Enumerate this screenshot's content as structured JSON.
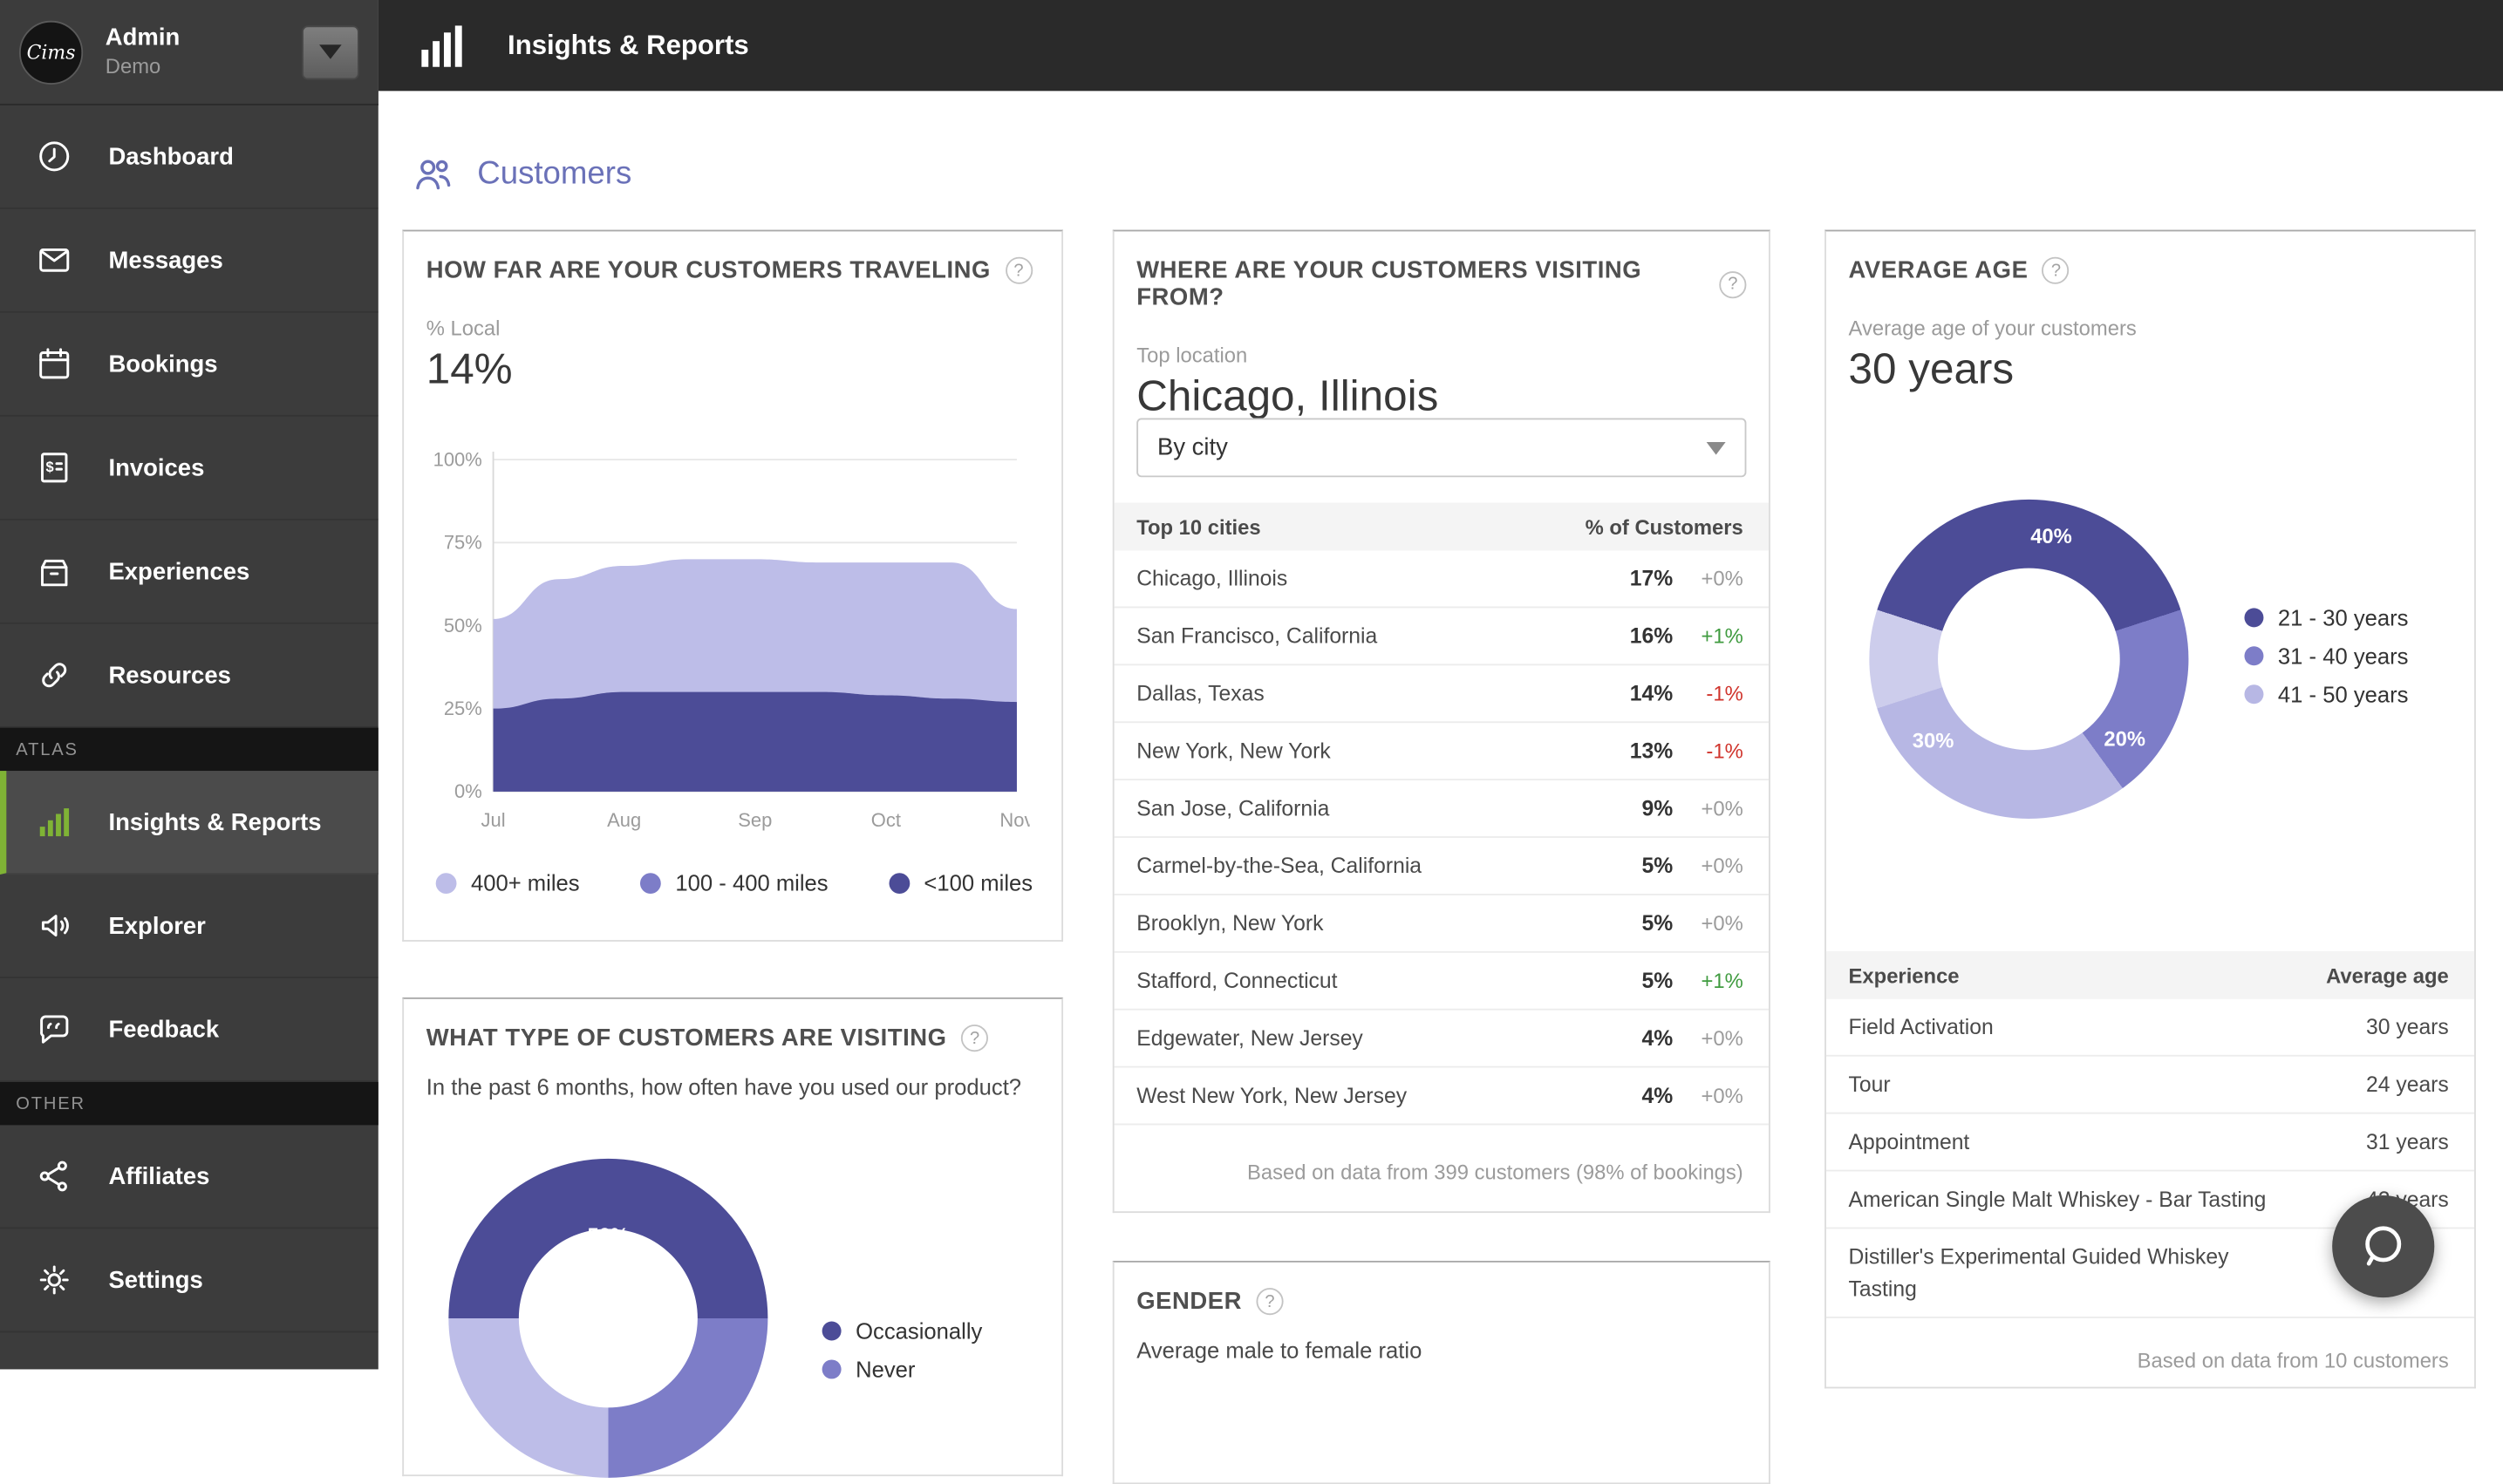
{
  "ui": {
    "help": "?"
  },
  "profile": {
    "logo": "Cims",
    "name": "Admin",
    "subtitle": "Demo"
  },
  "topbar": {
    "title": "Insights & Reports"
  },
  "sidebar": {
    "main_items": [
      {
        "label": "Dashboard"
      },
      {
        "label": "Messages"
      },
      {
        "label": "Bookings"
      },
      {
        "label": "Invoices"
      },
      {
        "label": "Experiences"
      },
      {
        "label": "Resources"
      }
    ],
    "atlas_header": "ATLAS",
    "atlas_items": [
      {
        "label": "Insights & Reports",
        "active": true
      },
      {
        "label": "Explorer"
      },
      {
        "label": "Feedback"
      }
    ],
    "other_header": "OTHER",
    "other_items": [
      {
        "label": "Affiliates"
      },
      {
        "label": "Settings"
      }
    ]
  },
  "page": {
    "section_title": "Customers"
  },
  "traveling_card": {
    "title": "HOW FAR ARE YOUR CUSTOMERS TRAVELING",
    "metric_label": "% Local",
    "metric_value": "14%",
    "legend": [
      {
        "label": "400+ miles",
        "color": "#bdbde8"
      },
      {
        "label": "100 - 400 miles",
        "color": "#7d7dc8"
      },
      {
        "label": "<100 miles",
        "color": "#4c4c97"
      }
    ],
    "chart_data": {
      "type": "area",
      "stacked": true,
      "categories": [
        "Jul",
        "Aug",
        "Sep",
        "Oct",
        "Nov"
      ],
      "yticks": [
        0,
        25,
        50,
        75,
        100
      ],
      "ylim": [
        0,
        100
      ],
      "series": [
        {
          "name": "<100 miles",
          "color": "#4c4c97",
          "values": [
            25,
            28,
            30,
            30,
            30,
            30,
            29,
            28,
            27
          ]
        },
        {
          "name": "400+ miles",
          "color": "#bdbde8",
          "values": [
            27,
            36,
            38,
            40,
            40,
            39,
            40,
            41,
            28
          ]
        }
      ]
    }
  },
  "type_card": {
    "title": "WHAT TYPE OF CUSTOMERS ARE VISITING",
    "subtitle": "In the past 6 months, how often have you used our product?",
    "chart_data": {
      "type": "pie",
      "donut": true,
      "segments": [
        {
          "label": "Occasionally",
          "pct": 50,
          "color": "#4c4c97",
          "display": "50%"
        },
        {
          "label": "Never",
          "pct": 25,
          "color": "#7d7dc8",
          "display": ""
        },
        {
          "label": "",
          "pct": 25,
          "color": "#bdbde8",
          "display": ""
        }
      ]
    },
    "legend": [
      {
        "label": "Occasionally"
      },
      {
        "label": "Never"
      }
    ]
  },
  "visiting_card": {
    "title": "WHERE ARE YOUR CUSTOMERS VISITING FROM?",
    "top_location_label": "Top location",
    "top_location": "Chicago, Illinois",
    "filter_value": "By city",
    "table": {
      "col1": "Top 10 cities",
      "col2": "% of Customers",
      "rows": [
        {
          "city": "Chicago, Illinois",
          "pct": "17%",
          "delta": "+0%",
          "delta_type": "zero"
        },
        {
          "city": "San Francisco, California",
          "pct": "16%",
          "delta": "+1%",
          "delta_type": "up"
        },
        {
          "city": "Dallas, Texas",
          "pct": "14%",
          "delta": "-1%",
          "delta_type": "down"
        },
        {
          "city": "New York, New York",
          "pct": "13%",
          "delta": "-1%",
          "delta_type": "down"
        },
        {
          "city": "San Jose, California",
          "pct": "9%",
          "delta": "+0%",
          "delta_type": "zero"
        },
        {
          "city": "Carmel-by-the-Sea, California",
          "pct": "5%",
          "delta": "+0%",
          "delta_type": "zero"
        },
        {
          "city": "Brooklyn, New York",
          "pct": "5%",
          "delta": "+0%",
          "delta_type": "zero"
        },
        {
          "city": "Stafford, Connecticut",
          "pct": "5%",
          "delta": "+1%",
          "delta_type": "up"
        },
        {
          "city": "Edgewater, New Jersey",
          "pct": "4%",
          "delta": "+0%",
          "delta_type": "zero"
        },
        {
          "city": "West New York, New Jersey",
          "pct": "4%",
          "delta": "+0%",
          "delta_type": "zero"
        }
      ]
    },
    "footnote": "Based on data from 399 customers (98% of bookings)"
  },
  "gender_card": {
    "title": "GENDER",
    "subtitle": "Average male to female ratio"
  },
  "age_card": {
    "title": "AVERAGE AGE",
    "subtitle": "Average age of your customers",
    "metric_value": "30 years",
    "chart_data": {
      "type": "pie",
      "donut": true,
      "segments": [
        {
          "label": "21 - 30 years",
          "pct": 40,
          "color": "#4c4c97",
          "display": "40%"
        },
        {
          "label": "31 - 40 years",
          "pct": 20,
          "color": "#7d7dc8",
          "display": "20%"
        },
        {
          "label": "41 - 50 years",
          "pct": 30,
          "color": "#b7b7e4",
          "display": "30%"
        },
        {
          "label": "",
          "pct": 10,
          "color": "#cdcdec",
          "display": ""
        }
      ]
    },
    "legend": [
      {
        "label": "21 - 30 years"
      },
      {
        "label": "31 - 40 years"
      },
      {
        "label": "41 - 50 years"
      }
    ],
    "table": {
      "col1": "Experience",
      "col2": "Average age",
      "rows": [
        {
          "experience": "Field Activation",
          "age": "30 years"
        },
        {
          "experience": "Tour",
          "age": "24 years"
        },
        {
          "experience": "Appointment",
          "age": "31 years"
        },
        {
          "experience": "American Single Malt Whiskey - Bar Tasting",
          "age": "42 years"
        },
        {
          "experience": "Distiller's Experimental Guided Whiskey Tasting",
          "age": ""
        }
      ]
    },
    "footnote": "Based on data from 10 customers"
  }
}
